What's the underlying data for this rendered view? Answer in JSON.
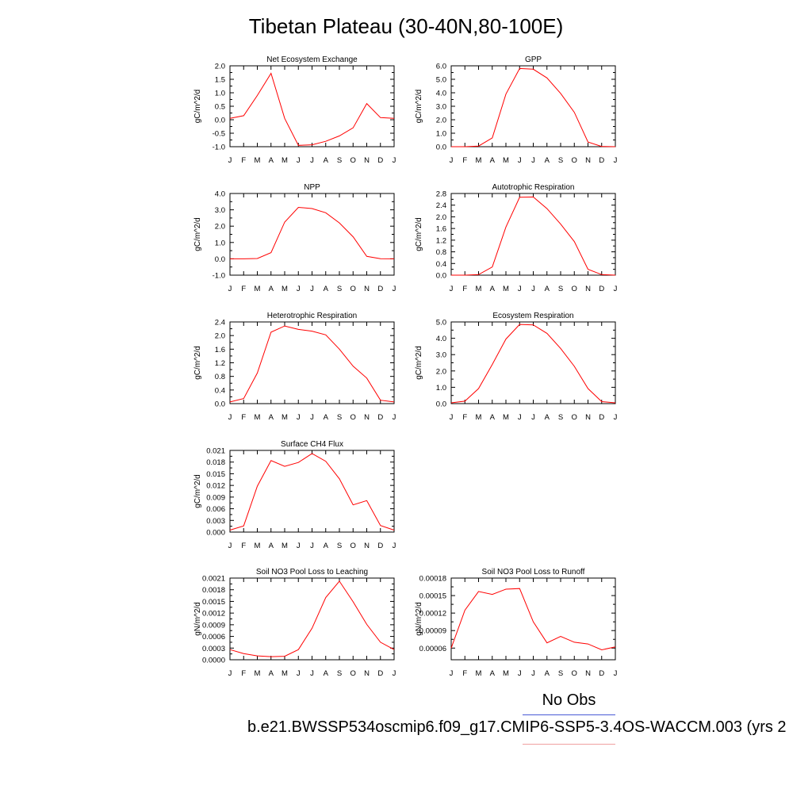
{
  "title": "Tibetan Plateau (30-40N,80-100E)",
  "legend": {
    "label": "No Obs"
  },
  "caption": "b.e21.BWSSP534oscmip6.f09_g17.CMIP6-SSP5-3.4OS-WACCM.003 (yrs 2",
  "colors": {
    "series": "#ff0000",
    "obs_line": "#4a5bd6",
    "model_line": "#f0a0a0",
    "axis": "#000000"
  },
  "chart_data": [
    {
      "type": "line",
      "title": "Net Ecosystem Exchange",
      "ylabel": "gC/m^2/d",
      "categories": [
        "J",
        "F",
        "M",
        "A",
        "M",
        "J",
        "J",
        "A",
        "S",
        "O",
        "N",
        "D",
        "J"
      ],
      "ylim": [
        -1.0,
        2.0
      ],
      "yticks": [
        "-1.0",
        "-0.5",
        "0.0",
        "0.5",
        "1.0",
        "1.5",
        "2.0"
      ],
      "values": [
        0.05,
        0.15,
        0.9,
        1.72,
        0.05,
        -0.95,
        -0.93,
        -0.8,
        -0.6,
        -0.3,
        0.6,
        0.08,
        0.05
      ]
    },
    {
      "type": "line",
      "title": "GPP",
      "ylabel": "gC/m^2/d",
      "categories": [
        "J",
        "F",
        "M",
        "A",
        "M",
        "J",
        "J",
        "A",
        "S",
        "O",
        "N",
        "D",
        "J"
      ],
      "ylim": [
        0.0,
        6.0
      ],
      "yticks": [
        "0.0",
        "1.0",
        "2.0",
        "3.0",
        "4.0",
        "5.0",
        "6.0"
      ],
      "values": [
        0.0,
        0.0,
        0.05,
        0.65,
        3.9,
        5.8,
        5.75,
        5.1,
        3.95,
        2.55,
        0.35,
        0.02,
        0.0
      ]
    },
    {
      "type": "line",
      "title": "NPP",
      "ylabel": "gC/m^2/d",
      "categories": [
        "J",
        "F",
        "M",
        "A",
        "M",
        "J",
        "J",
        "A",
        "S",
        "O",
        "N",
        "D",
        "J"
      ],
      "ylim": [
        -1.0,
        4.0
      ],
      "yticks": [
        "-1.0",
        "0.0",
        "1.0",
        "2.0",
        "3.0",
        "4.0"
      ],
      "values": [
        0.0,
        0.0,
        0.02,
        0.38,
        2.25,
        3.15,
        3.08,
        2.82,
        2.2,
        1.35,
        0.15,
        0.01,
        0.0
      ]
    },
    {
      "type": "line",
      "title": "Autotrophic Respiration",
      "ylabel": "gC/m^2/d",
      "categories": [
        "J",
        "F",
        "M",
        "A",
        "M",
        "J",
        "J",
        "A",
        "S",
        "O",
        "N",
        "D",
        "J"
      ],
      "ylim": [
        0.0,
        2.8
      ],
      "yticks": [
        "0.0",
        "0.4",
        "0.8",
        "1.2",
        "1.6",
        "2.0",
        "2.4",
        "2.8"
      ],
      "values": [
        0.0,
        0.0,
        0.02,
        0.28,
        1.65,
        2.67,
        2.68,
        2.28,
        1.75,
        1.15,
        0.2,
        0.02,
        0.0
      ]
    },
    {
      "type": "line",
      "title": "Heterotrophic Respiration",
      "ylabel": "gC/m^2/d",
      "categories": [
        "J",
        "F",
        "M",
        "A",
        "M",
        "J",
        "J",
        "A",
        "S",
        "O",
        "N",
        "D",
        "J"
      ],
      "ylim": [
        0.0,
        2.4
      ],
      "yticks": [
        "0.0",
        "0.4",
        "0.8",
        "1.2",
        "1.6",
        "2.0",
        "2.4"
      ],
      "values": [
        0.05,
        0.15,
        0.9,
        2.1,
        2.28,
        2.18,
        2.13,
        2.02,
        1.6,
        1.1,
        0.75,
        0.1,
        0.05
      ]
    },
    {
      "type": "line",
      "title": "Ecosystem Respiration",
      "ylabel": "gC/m^2/d",
      "categories": [
        "J",
        "F",
        "M",
        "A",
        "M",
        "J",
        "J",
        "A",
        "S",
        "O",
        "N",
        "D",
        "J"
      ],
      "ylim": [
        0.0,
        5.0
      ],
      "yticks": [
        "0.0",
        "1.0",
        "2.0",
        "3.0",
        "4.0",
        "5.0"
      ],
      "values": [
        0.05,
        0.15,
        0.92,
        2.4,
        3.95,
        4.85,
        4.82,
        4.3,
        3.38,
        2.28,
        0.92,
        0.12,
        0.05
      ]
    },
    {
      "type": "line",
      "title": "Surface CH4 Flux",
      "ylabel": "gC/m^2/d",
      "categories": [
        "J",
        "F",
        "M",
        "A",
        "M",
        "J",
        "J",
        "A",
        "S",
        "O",
        "N",
        "D",
        "J"
      ],
      "ylim": [
        0.0,
        0.021
      ],
      "yticks": [
        "0.000",
        "0.003",
        "0.006",
        "0.009",
        "0.012",
        "0.015",
        "0.018",
        "0.021"
      ],
      "values": [
        0.0005,
        0.0016,
        0.0118,
        0.0184,
        0.0169,
        0.0179,
        0.0202,
        0.0182,
        0.0137,
        0.007,
        0.0081,
        0.0017,
        0.0005
      ]
    },
    {
      "type": "line",
      "title": "Soil NO3 Pool Loss to Leaching",
      "ylabel": "gN/m^2/d",
      "categories": [
        "J",
        "F",
        "M",
        "A",
        "M",
        "J",
        "J",
        "A",
        "S",
        "O",
        "N",
        "D",
        "J"
      ],
      "ylim": [
        0.0,
        0.0021
      ],
      "yticks": [
        "0.0000",
        "0.0003",
        "0.0006",
        "0.0009",
        "0.0012",
        "0.0015",
        "0.0018",
        "0.0021"
      ],
      "values": [
        0.00026,
        0.00016,
        0.0001,
        8e-05,
        9e-05,
        0.00026,
        0.00081,
        0.0016,
        0.00202,
        0.00149,
        0.00091,
        0.00045,
        0.00026
      ]
    },
    {
      "type": "line",
      "title": "Soil NO3 Pool Loss to Runoff",
      "ylabel": "gN/m^2/d",
      "categories": [
        "J",
        "F",
        "M",
        "A",
        "M",
        "J",
        "J",
        "A",
        "S",
        "O",
        "N",
        "D",
        "J"
      ],
      "ylim": [
        4e-05,
        0.00018
      ],
      "yticks": [
        "0.00006",
        "0.00009",
        "0.00012",
        "0.00015",
        "0.00018"
      ],
      "values": [
        6e-05,
        0.000125,
        0.000157,
        0.000152,
        0.000161,
        0.000162,
        0.000105,
        6.9e-05,
        8e-05,
        7e-05,
        6.7e-05,
        5.7e-05,
        6.2e-05
      ]
    }
  ]
}
